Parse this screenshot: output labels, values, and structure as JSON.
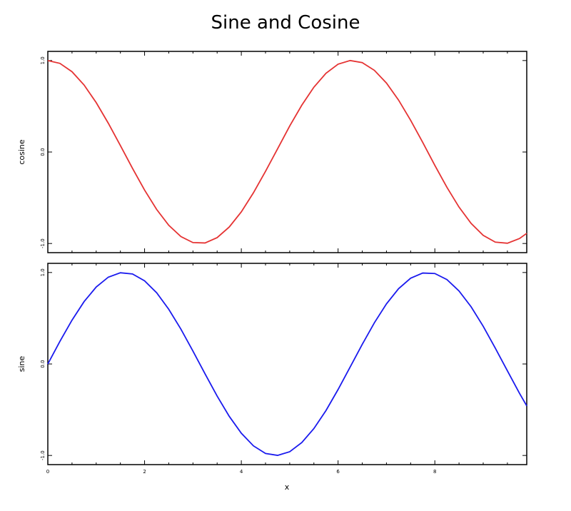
{
  "chart_data": {
    "type": "line",
    "title": "Sine and Cosine",
    "xlabel": "x",
    "xlim": [
      0,
      9.9
    ],
    "x_ticks": [
      "0",
      "2",
      "4",
      "6",
      "8"
    ],
    "x_tick_values": [
      0,
      2,
      4,
      6,
      8
    ],
    "subplots": [
      {
        "ylabel": "cosine",
        "ylim": [
          -1.1,
          1.1
        ],
        "y_ticks": [
          "-1.0",
          "0.0",
          "1.0"
        ],
        "y_tick_values": [
          -1,
          0,
          1
        ],
        "series": [
          {
            "color": "#e53333",
            "x": [
              0,
              0.25,
              0.5,
              0.75,
              1,
              1.25,
              1.5,
              1.75,
              2,
              2.25,
              2.5,
              2.75,
              3,
              3.25,
              3.5,
              3.75,
              4,
              4.25,
              4.5,
              4.75,
              5,
              5.25,
              5.5,
              5.75,
              6,
              6.25,
              6.5,
              6.75,
              7,
              7.25,
              7.5,
              7.75,
              8,
              8.25,
              8.5,
              8.75,
              9,
              9.25,
              9.5,
              9.75,
              9.9
            ],
            "values": [
              1,
              0.969,
              0.878,
              0.732,
              0.54,
              0.315,
              0.071,
              -0.178,
              -0.416,
              -0.628,
              -0.801,
              -0.924,
              -0.99,
              -0.994,
              -0.936,
              -0.82,
              -0.654,
              -0.446,
              -0.211,
              0.036,
              0.284,
              0.512,
              0.709,
              0.861,
              0.96,
              1,
              0.977,
              0.893,
              0.754,
              0.568,
              0.347,
              0.105,
              -0.146,
              -0.386,
              -0.602,
              -0.78,
              -0.911,
              -0.985,
              -0.997,
              -0.946,
              -0.889
            ]
          }
        ]
      },
      {
        "ylabel": "sine",
        "ylim": [
          -1.1,
          1.1
        ],
        "y_ticks": [
          "-1.0",
          "0.0",
          "1.0"
        ],
        "y_tick_values": [
          -1,
          0,
          1
        ],
        "series": [
          {
            "color": "#1a1aee",
            "x": [
              0,
              0.25,
              0.5,
              0.75,
              1,
              1.25,
              1.5,
              1.75,
              2,
              2.25,
              2.5,
              2.75,
              3,
              3.25,
              3.5,
              3.75,
              4,
              4.25,
              4.5,
              4.75,
              5,
              5.25,
              5.5,
              5.75,
              6,
              6.25,
              6.5,
              6.75,
              7,
              7.25,
              7.5,
              7.75,
              8,
              8.25,
              8.5,
              8.75,
              9,
              9.25,
              9.5,
              9.75,
              9.9
            ],
            "values": [
              0,
              0.247,
              0.479,
              0.682,
              0.841,
              0.949,
              0.997,
              0.984,
              0.909,
              0.778,
              0.598,
              0.382,
              0.141,
              -0.108,
              -0.351,
              -0.572,
              -0.757,
              -0.895,
              -0.978,
              -0.999,
              -0.959,
              -0.859,
              -0.706,
              -0.509,
              -0.279,
              -0.033,
              0.215,
              0.45,
              0.657,
              0.823,
              0.938,
              0.994,
              0.989,
              0.923,
              0.798,
              0.625,
              0.412,
              0.173,
              -0.075,
              -0.32,
              -0.458
            ]
          }
        ]
      }
    ]
  }
}
